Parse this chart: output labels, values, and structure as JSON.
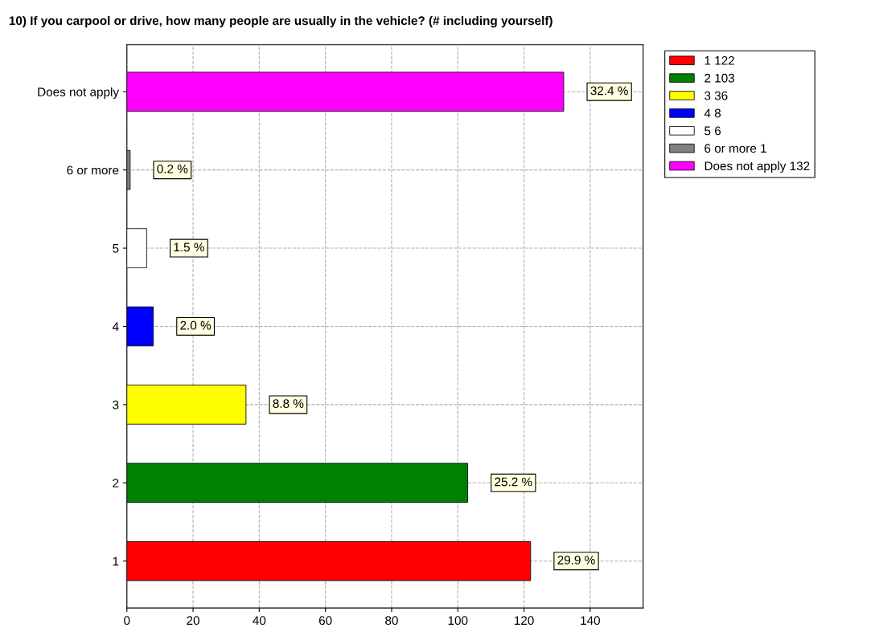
{
  "chart_data": {
    "type": "bar",
    "orientation": "horizontal",
    "title": "10) If you carpool or drive, how many people are usually in the vehicle? (# including yourself)",
    "categories": [
      "Does not apply",
      "6 or more",
      "5",
      "4",
      "3",
      "2",
      "1"
    ],
    "series": [
      {
        "name": "1 122",
        "color": "#ff0000",
        "values": [
          null,
          null,
          null,
          null,
          null,
          null,
          122
        ]
      },
      {
        "name": "2 103",
        "color": "#008000",
        "values": [
          null,
          null,
          null,
          null,
          null,
          103,
          null
        ]
      },
      {
        "name": "3 36",
        "color": "#ffff00",
        "values": [
          null,
          null,
          null,
          null,
          36,
          null,
          null
        ]
      },
      {
        "name": "4 8",
        "color": "#0000ff",
        "values": [
          null,
          null,
          null,
          8,
          null,
          null,
          null
        ]
      },
      {
        "name": "5 6",
        "color": "#ffffff",
        "values": [
          null,
          null,
          6,
          null,
          null,
          null,
          null
        ]
      },
      {
        "name": "6 or more 1",
        "color": "#808080",
        "values": [
          null,
          1,
          null,
          null,
          null,
          null,
          null
        ]
      },
      {
        "name": "Does not apply 132",
        "color": "#ff00ff",
        "values": [
          132,
          null,
          null,
          null,
          null,
          null,
          null
        ]
      }
    ],
    "annotations": [
      {
        "text": "32.4 %",
        "x": 132,
        "y": "Does not apply"
      },
      {
        "text": "0.2 %",
        "x": 1,
        "y": "6 or more"
      },
      {
        "text": "1.5 %",
        "x": 6,
        "y": "5"
      },
      {
        "text": "2.0 %",
        "x": 8,
        "y": "4"
      },
      {
        "text": "8.8 %",
        "x": 36,
        "y": "3"
      },
      {
        "text": "25.2 %",
        "x": 103,
        "y": "2"
      },
      {
        "text": "29.9 %",
        "x": 122,
        "y": "1"
      }
    ],
    "xlim": [
      0,
      156
    ],
    "xticks": [
      0,
      20,
      40,
      60,
      80,
      100,
      120,
      140
    ],
    "grid": true,
    "legend": "top right"
  }
}
